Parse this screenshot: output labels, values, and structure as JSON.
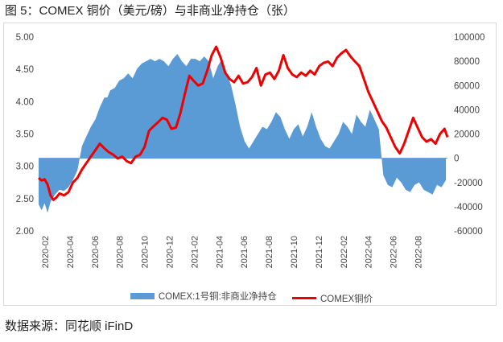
{
  "title": "图 5：COMEX 铜价（美元/磅）与非商业净持仓（张）",
  "source": "数据来源：同花顺 iFinD",
  "colors": {
    "area": "#5b9bd5",
    "line": "#ee0000"
  },
  "chart_data": {
    "type": "line",
    "x_ticks": [
      "2020-02",
      "2020-04",
      "2020-06",
      "2020-08",
      "2020-10",
      "2020-12",
      "2021-02",
      "2021-04",
      "2021-06",
      "2021-08",
      "2021-10",
      "2021-12",
      "2022-02",
      "2022-04",
      "2022-06",
      "2022-08"
    ],
    "x_tick_labels": [
      "2020-02",
      "2020-04",
      "2020-06",
      "2020-08",
      "2020-10",
      "2020-12",
      "2021-02",
      "2021-04",
      "2021-06",
      "2021-08",
      "2021-10",
      "2021-12",
      "2022-02",
      "2022-04",
      "2022-06",
      "2022-08"
    ],
    "x_range": [
      2020.04,
      2022.78
    ],
    "y_left": {
      "min": 2.0,
      "max": 5.0,
      "ticks": [
        "2.00",
        "2.50",
        "3.00",
        "3.50",
        "4.00",
        "4.50",
        "5.00"
      ]
    },
    "y_right": {
      "min": -60000,
      "max": 100000,
      "ticks": [
        "-60000",
        "-40000",
        "-20000",
        "0",
        "20000",
        "40000",
        "60000",
        "80000",
        "100000"
      ]
    },
    "legend": [
      "COMEX:1号铜:非商业净持仓",
      "COMEX铜价"
    ],
    "series": [
      {
        "name": "COMEX:1号铜:非商业净持仓",
        "axis": "right",
        "type": "area",
        "x": [
          2020.04,
          2020.06,
          2020.08,
          2020.1,
          2020.12,
          2020.15,
          2020.18,
          2020.21,
          2020.24,
          2020.27,
          2020.3,
          2020.33,
          2020.36,
          2020.39,
          2020.42,
          2020.45,
          2020.48,
          2020.5,
          2020.52,
          2020.55,
          2020.58,
          2020.61,
          2020.64,
          2020.67,
          2020.7,
          2020.73,
          2020.76,
          2020.79,
          2020.82,
          2020.85,
          2020.88,
          2020.91,
          2020.94,
          2020.97,
          2021.0,
          2021.03,
          2021.06,
          2021.09,
          2021.12,
          2021.15,
          2021.18,
          2021.21,
          2021.24,
          2021.27,
          2021.3,
          2021.33,
          2021.36,
          2021.39,
          2021.42,
          2021.45,
          2021.48,
          2021.51,
          2021.54,
          2021.57,
          2021.6,
          2021.63,
          2021.66,
          2021.69,
          2021.72,
          2021.75,
          2021.78,
          2021.81,
          2021.84,
          2021.87,
          2021.9,
          2021.93,
          2021.96,
          2021.99,
          2022.02,
          2022.05,
          2022.08,
          2022.11,
          2022.14,
          2022.17,
          2022.2,
          2022.23,
          2022.26,
          2022.29,
          2022.32,
          2022.35,
          2022.38,
          2022.41,
          2022.44,
          2022.47,
          2022.5,
          2022.53,
          2022.56,
          2022.59,
          2022.62,
          2022.65,
          2022.68,
          2022.71,
          2022.74,
          2022.77
        ],
        "values": [
          -38000,
          -43000,
          -37000,
          -45000,
          -36000,
          -30000,
          -26000,
          -27000,
          -24000,
          -18000,
          -10000,
          10000,
          18000,
          26000,
          32000,
          42000,
          50000,
          50000,
          56000,
          58000,
          64000,
          66000,
          70000,
          66000,
          74000,
          78000,
          80000,
          82000,
          80000,
          82000,
          80000,
          76000,
          82000,
          86000,
          80000,
          76000,
          82000,
          82000,
          80000,
          84000,
          80000,
          66000,
          76000,
          82000,
          70000,
          60000,
          44000,
          26000,
          14000,
          8000,
          14000,
          20000,
          26000,
          24000,
          30000,
          38000,
          34000,
          24000,
          16000,
          24000,
          28000,
          18000,
          26000,
          38000,
          26000,
          16000,
          10000,
          8000,
          14000,
          20000,
          30000,
          26000,
          20000,
          36000,
          30000,
          26000,
          40000,
          32000,
          24000,
          -14000,
          -22000,
          -24000,
          -16000,
          -20000,
          -26000,
          -28000,
          -22000,
          -20000,
          -26000,
          -28000,
          -30000,
          -22000,
          -24000,
          -18000
        ]
      },
      {
        "name": "COMEX铜价",
        "axis": "left",
        "type": "line",
        "x": [
          2020.04,
          2020.06,
          2020.08,
          2020.1,
          2020.12,
          2020.14,
          2020.16,
          2020.18,
          2020.21,
          2020.24,
          2020.27,
          2020.3,
          2020.33,
          2020.36,
          2020.39,
          2020.42,
          2020.45,
          2020.48,
          2020.51,
          2020.54,
          2020.57,
          2020.6,
          2020.63,
          2020.66,
          2020.69,
          2020.72,
          2020.75,
          2020.78,
          2020.81,
          2020.84,
          2020.87,
          2020.9,
          2020.93,
          2020.96,
          2020.99,
          2021.02,
          2021.05,
          2021.08,
          2021.11,
          2021.14,
          2021.17,
          2021.2,
          2021.23,
          2021.26,
          2021.29,
          2021.32,
          2021.35,
          2021.38,
          2021.41,
          2021.44,
          2021.47,
          2021.5,
          2021.53,
          2021.56,
          2021.59,
          2021.62,
          2021.65,
          2021.68,
          2021.71,
          2021.74,
          2021.77,
          2021.8,
          2021.83,
          2021.86,
          2021.89,
          2021.92,
          2021.95,
          2021.98,
          2022.01,
          2022.04,
          2022.07,
          2022.1,
          2022.13,
          2022.16,
          2022.19,
          2022.22,
          2022.25,
          2022.28,
          2022.31,
          2022.34,
          2022.37,
          2022.4,
          2022.43,
          2022.46,
          2022.49,
          2022.52,
          2022.55,
          2022.58,
          2022.61,
          2022.64,
          2022.67,
          2022.7,
          2022.73,
          2022.76,
          2022.78
        ],
        "values": [
          2.82,
          2.78,
          2.8,
          2.72,
          2.55,
          2.48,
          2.52,
          2.58,
          2.55,
          2.6,
          2.75,
          2.82,
          2.95,
          3.05,
          3.15,
          3.25,
          3.35,
          3.28,
          3.22,
          3.18,
          3.12,
          3.15,
          3.08,
          3.05,
          3.15,
          3.18,
          3.3,
          3.55,
          3.62,
          3.68,
          3.75,
          3.72,
          3.58,
          3.6,
          3.82,
          4.12,
          4.4,
          4.32,
          4.25,
          4.28,
          4.48,
          4.72,
          4.85,
          4.68,
          4.45,
          4.35,
          4.3,
          4.4,
          4.28,
          4.3,
          4.38,
          4.52,
          4.25,
          4.42,
          4.45,
          4.35,
          4.48,
          4.72,
          4.52,
          4.42,
          4.38,
          4.45,
          4.4,
          4.48,
          4.42,
          4.55,
          4.6,
          4.62,
          4.55,
          4.68,
          4.75,
          4.8,
          4.7,
          4.62,
          4.55,
          4.35,
          4.15,
          4.0,
          3.85,
          3.7,
          3.6,
          3.45,
          3.3,
          3.2,
          3.35,
          3.55,
          3.75,
          3.6,
          3.45,
          3.38,
          3.42,
          3.35,
          3.5,
          3.58,
          3.45
        ]
      }
    ]
  }
}
